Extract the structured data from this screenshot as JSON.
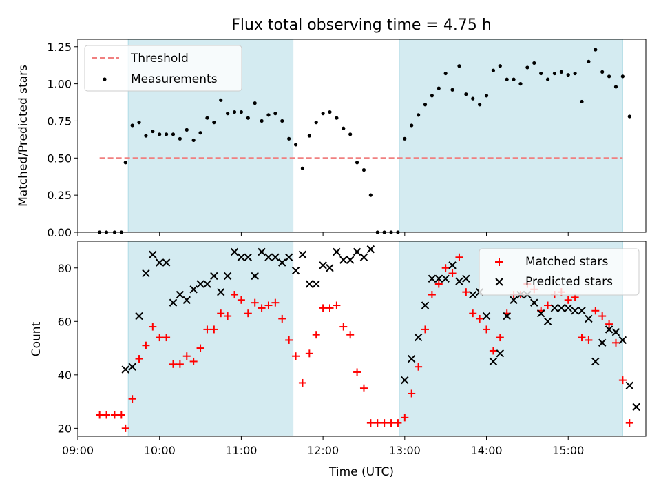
{
  "chart_data": [
    {
      "type": "scatter",
      "title": "Flux total observing time = 4.75 h",
      "ylabel": "Matched/Predicted stars",
      "xlabel": "",
      "xlim": [
        "09:00",
        "15:57"
      ],
      "ylim": [
        0,
        1.3
      ],
      "yticks": [
        "0.00",
        "0.25",
        "0.50",
        "0.75",
        "1.00",
        "1.25"
      ],
      "legend_placement": "top-left",
      "shaded_intervals": [
        [
          "09:37",
          "11:38"
        ],
        [
          "12:56",
          "15:40"
        ]
      ],
      "threshold": {
        "name": "Threshold",
        "value": 0.5,
        "x_range": [
          "09:16",
          "15:40"
        ],
        "color": "#f08080"
      },
      "series": [
        {
          "name": "Measurements",
          "color": "#000000",
          "points": [
            [
              "09:16",
              0.0
            ],
            [
              "09:21",
              0.0
            ],
            [
              "09:27",
              0.0
            ],
            [
              "09:32",
              0.0
            ],
            [
              "09:35",
              0.47
            ],
            [
              "09:40",
              0.72
            ],
            [
              "09:45",
              0.74
            ],
            [
              "09:50",
              0.65
            ],
            [
              "09:55",
              0.68
            ],
            [
              "10:00",
              0.66
            ],
            [
              "10:05",
              0.66
            ],
            [
              "10:10",
              0.66
            ],
            [
              "10:15",
              0.63
            ],
            [
              "10:20",
              0.69
            ],
            [
              "10:25",
              0.62
            ],
            [
              "10:30",
              0.67
            ],
            [
              "10:35",
              0.77
            ],
            [
              "10:40",
              0.74
            ],
            [
              "10:45",
              0.89
            ],
            [
              "10:50",
              0.8
            ],
            [
              "10:55",
              0.81
            ],
            [
              "11:00",
              0.81
            ],
            [
              "11:05",
              0.77
            ],
            [
              "11:10",
              0.87
            ],
            [
              "11:15",
              0.75
            ],
            [
              "11:20",
              0.79
            ],
            [
              "11:25",
              0.8
            ],
            [
              "11:30",
              0.75
            ],
            [
              "11:35",
              0.63
            ],
            [
              "11:40",
              0.59
            ],
            [
              "11:45",
              0.43
            ],
            [
              "11:50",
              0.65
            ],
            [
              "11:55",
              0.74
            ],
            [
              "12:00",
              0.8
            ],
            [
              "12:05",
              0.81
            ],
            [
              "12:10",
              0.77
            ],
            [
              "12:15",
              0.7
            ],
            [
              "12:20",
              0.66
            ],
            [
              "12:25",
              0.47
            ],
            [
              "12:30",
              0.42
            ],
            [
              "12:35",
              0.25
            ],
            [
              "12:40",
              0.0
            ],
            [
              "12:45",
              0.0
            ],
            [
              "12:50",
              0.0
            ],
            [
              "12:55",
              0.0
            ],
            [
              "13:00",
              0.63
            ],
            [
              "13:05",
              0.72
            ],
            [
              "13:10",
              0.79
            ],
            [
              "13:15",
              0.86
            ],
            [
              "13:20",
              0.92
            ],
            [
              "13:25",
              0.97
            ],
            [
              "13:30",
              1.07
            ],
            [
              "13:35",
              0.96
            ],
            [
              "13:40",
              1.12
            ],
            [
              "13:45",
              0.93
            ],
            [
              "13:50",
              0.9
            ],
            [
              "13:55",
              0.86
            ],
            [
              "14:00",
              0.92
            ],
            [
              "14:05",
              1.09
            ],
            [
              "14:10",
              1.12
            ],
            [
              "14:15",
              1.03
            ],
            [
              "14:20",
              1.03
            ],
            [
              "14:25",
              1.0
            ],
            [
              "14:30",
              1.11
            ],
            [
              "14:35",
              1.14
            ],
            [
              "14:40",
              1.07
            ],
            [
              "14:45",
              1.03
            ],
            [
              "14:50",
              1.07
            ],
            [
              "14:55",
              1.08
            ],
            [
              "15:00",
              1.06
            ],
            [
              "15:05",
              1.07
            ],
            [
              "15:10",
              0.88
            ],
            [
              "15:15",
              1.15
            ],
            [
              "15:20",
              1.23
            ],
            [
              "15:25",
              1.08
            ],
            [
              "15:30",
              1.05
            ],
            [
              "15:35",
              0.98
            ],
            [
              "15:40",
              1.05
            ],
            [
              "15:45",
              0.78
            ]
          ]
        }
      ]
    },
    {
      "type": "scatter",
      "xlabel": "Time (UTC)",
      "ylabel": "Count",
      "xlim": [
        "09:00",
        "15:57"
      ],
      "ylim": [
        17,
        90
      ],
      "xticks": [
        "09:00",
        "10:00",
        "11:00",
        "12:00",
        "13:00",
        "14:00",
        "15:00"
      ],
      "yticks": [
        "20",
        "40",
        "60",
        "80"
      ],
      "legend_placement": "top-right",
      "shaded_intervals": [
        [
          "09:37",
          "11:38"
        ],
        [
          "12:56",
          "15:40"
        ]
      ],
      "series": [
        {
          "name": "Matched stars",
          "marker": "plus",
          "color": "#ff0000",
          "points": [
            [
              "09:16",
              25
            ],
            [
              "09:21",
              25
            ],
            [
              "09:27",
              25
            ],
            [
              "09:32",
              25
            ],
            [
              "09:35",
              20
            ],
            [
              "09:40",
              31
            ],
            [
              "09:45",
              46
            ],
            [
              "09:50",
              51
            ],
            [
              "09:55",
              58
            ],
            [
              "10:00",
              54
            ],
            [
              "10:05",
              54
            ],
            [
              "10:10",
              44
            ],
            [
              "10:15",
              44
            ],
            [
              "10:20",
              47
            ],
            [
              "10:25",
              45
            ],
            [
              "10:30",
              50
            ],
            [
              "10:35",
              57
            ],
            [
              "10:40",
              57
            ],
            [
              "10:45",
              63
            ],
            [
              "10:50",
              62
            ],
            [
              "10:55",
              70
            ],
            [
              "11:00",
              68
            ],
            [
              "11:05",
              63
            ],
            [
              "11:10",
              67
            ],
            [
              "11:15",
              65
            ],
            [
              "11:20",
              66
            ],
            [
              "11:25",
              67
            ],
            [
              "11:30",
              61
            ],
            [
              "11:35",
              53
            ],
            [
              "11:40",
              47
            ],
            [
              "11:45",
              37
            ],
            [
              "11:50",
              48
            ],
            [
              "11:55",
              55
            ],
            [
              "12:00",
              65
            ],
            [
              "12:05",
              65
            ],
            [
              "12:10",
              66
            ],
            [
              "12:15",
              58
            ],
            [
              "12:20",
              55
            ],
            [
              "12:25",
              41
            ],
            [
              "12:30",
              35
            ],
            [
              "12:35",
              22
            ],
            [
              "12:40",
              22
            ],
            [
              "12:45",
              22
            ],
            [
              "12:50",
              22
            ],
            [
              "12:55",
              22
            ],
            [
              "13:00",
              24
            ],
            [
              "13:05",
              33
            ],
            [
              "13:10",
              43
            ],
            [
              "13:15",
              57
            ],
            [
              "13:20",
              70
            ],
            [
              "13:25",
              74
            ],
            [
              "13:30",
              80
            ],
            [
              "13:35",
              78
            ],
            [
              "13:40",
              84
            ],
            [
              "13:45",
              71
            ],
            [
              "13:50",
              63
            ],
            [
              "13:55",
              61
            ],
            [
              "14:00",
              57
            ],
            [
              "14:05",
              49
            ],
            [
              "14:10",
              54
            ],
            [
              "14:15",
              63
            ],
            [
              "14:20",
              70
            ],
            [
              "14:25",
              70
            ],
            [
              "14:30",
              74
            ],
            [
              "14:35",
              72
            ],
            [
              "14:40",
              64
            ],
            [
              "14:45",
              66
            ],
            [
              "14:50",
              70
            ],
            [
              "14:55",
              71
            ],
            [
              "15:00",
              68
            ],
            [
              "15:05",
              69
            ],
            [
              "15:10",
              54
            ],
            [
              "15:15",
              53
            ],
            [
              "15:20",
              64
            ],
            [
              "15:25",
              62
            ],
            [
              "15:30",
              59
            ],
            [
              "15:35",
              52
            ],
            [
              "15:40",
              38
            ],
            [
              "15:45",
              22
            ]
          ]
        },
        {
          "name": "Predicted stars",
          "marker": "x",
          "color": "#000000",
          "points": [
            [
              "09:35",
              42
            ],
            [
              "09:40",
              43
            ],
            [
              "09:45",
              62
            ],
            [
              "09:50",
              78
            ],
            [
              "09:55",
              85
            ],
            [
              "10:00",
              82
            ],
            [
              "10:05",
              82
            ],
            [
              "10:10",
              67
            ],
            [
              "10:15",
              70
            ],
            [
              "10:20",
              68
            ],
            [
              "10:25",
              72
            ],
            [
              "10:30",
              74
            ],
            [
              "10:35",
              74
            ],
            [
              "10:40",
              77
            ],
            [
              "10:45",
              71
            ],
            [
              "10:50",
              77
            ],
            [
              "10:55",
              86
            ],
            [
              "11:00",
              84
            ],
            [
              "11:05",
              84
            ],
            [
              "11:10",
              77
            ],
            [
              "11:15",
              86
            ],
            [
              "11:20",
              84
            ],
            [
              "11:25",
              84
            ],
            [
              "11:30",
              82
            ],
            [
              "11:35",
              84
            ],
            [
              "11:40",
              79
            ],
            [
              "11:45",
              85
            ],
            [
              "11:50",
              74
            ],
            [
              "11:55",
              74
            ],
            [
              "12:00",
              81
            ],
            [
              "12:05",
              80
            ],
            [
              "12:10",
              86
            ],
            [
              "12:15",
              83
            ],
            [
              "12:20",
              83
            ],
            [
              "12:25",
              86
            ],
            [
              "12:30",
              84
            ],
            [
              "12:35",
              87
            ],
            [
              "13:00",
              38
            ],
            [
              "13:05",
              46
            ],
            [
              "13:10",
              54
            ],
            [
              "13:15",
              66
            ],
            [
              "13:20",
              76
            ],
            [
              "13:25",
              76
            ],
            [
              "13:30",
              76
            ],
            [
              "13:35",
              81
            ],
            [
              "13:40",
              75
            ],
            [
              "13:45",
              76
            ],
            [
              "13:50",
              70
            ],
            [
              "13:55",
              71
            ],
            [
              "14:00",
              62
            ],
            [
              "14:05",
              45
            ],
            [
              "14:10",
              48
            ],
            [
              "14:15",
              62
            ],
            [
              "14:20",
              68
            ],
            [
              "14:25",
              70
            ],
            [
              "14:30",
              70
            ],
            [
              "14:35",
              67
            ],
            [
              "14:40",
              63
            ],
            [
              "14:45",
              60
            ],
            [
              "14:50",
              65
            ],
            [
              "14:55",
              65
            ],
            [
              "15:00",
              65
            ],
            [
              "15:05",
              64
            ],
            [
              "15:10",
              64
            ],
            [
              "15:15",
              61
            ],
            [
              "15:20",
              45
            ],
            [
              "15:25",
              52
            ],
            [
              "15:30",
              57
            ],
            [
              "15:35",
              56
            ],
            [
              "15:40",
              53
            ],
            [
              "15:45",
              36
            ],
            [
              "15:50",
              28
            ]
          ]
        }
      ]
    }
  ],
  "colors": {
    "shade": "#d4ebf1",
    "shade_edge": "#b0dbe5"
  }
}
